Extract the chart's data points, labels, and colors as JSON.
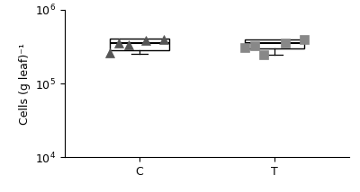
{
  "ylabel": "Cells (g leaf)⁻¹",
  "xtick_positions": [
    1,
    2
  ],
  "xtick_labels": [
    "C",
    "T"
  ],
  "ylim_log": [
    4,
    6
  ],
  "yticks_log": [
    4,
    5,
    6
  ],
  "background_color": "#ffffff",
  "C_box": {
    "q1": 285000.0,
    "median": 350000.0,
    "q3": 410000.0,
    "whisker_low": 255000.0,
    "whisker_high": 410000.0,
    "points_x": [
      0.78,
      0.92,
      1.05,
      1.18,
      0.85
    ],
    "points_y": [
      258000.0,
      335000.0,
      385000.0,
      395000.0,
      350000.0
    ],
    "marker": "^",
    "color": "#555555"
  },
  "T_box": {
    "q1": 300000.0,
    "median": 355000.0,
    "q3": 390000.0,
    "whisker_low": 245000.0,
    "whisker_high": 390000.0,
    "points_x": [
      1.78,
      1.92,
      2.08,
      2.22,
      1.85
    ],
    "points_y": [
      305000.0,
      245000.0,
      355000.0,
      390000.0,
      320000.0
    ],
    "marker": "s",
    "color": "#888888"
  }
}
